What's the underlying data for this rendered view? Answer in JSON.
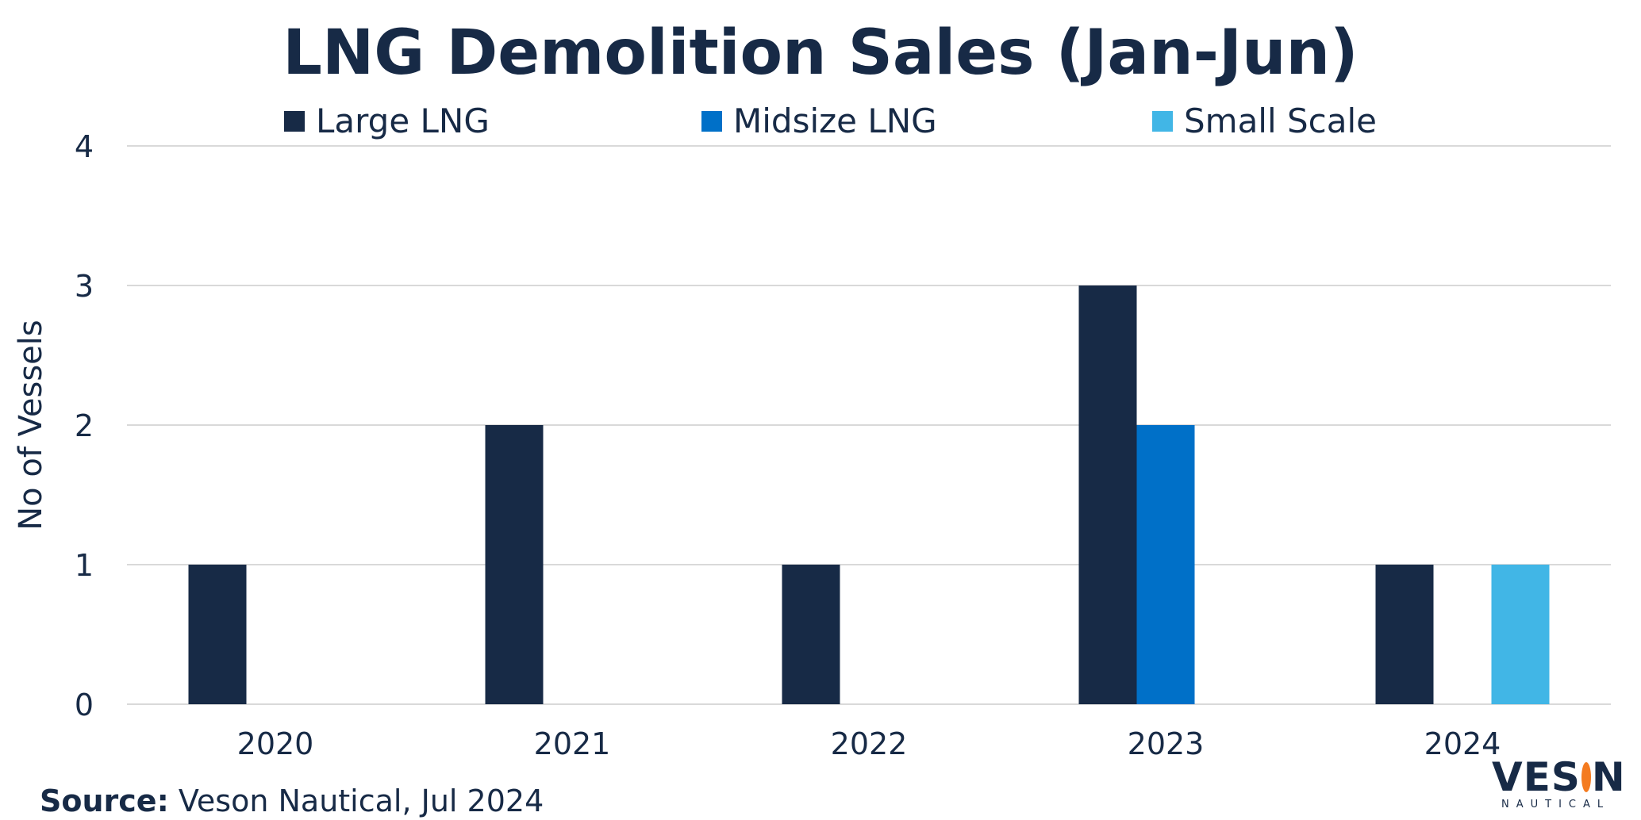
{
  "chart_data": {
    "type": "bar",
    "title": "LNG Demolition Sales (Jan-Jun)",
    "xlabel": "",
    "ylabel": "No of Vessels",
    "ylim": [
      0,
      4
    ],
    "yticks": [
      "0",
      "1",
      "2",
      "3",
      "4"
    ],
    "grid": true,
    "legend_position": "top",
    "categories": [
      "2020",
      "2021",
      "2022",
      "2023",
      "2024"
    ],
    "series": [
      {
        "name": "Large LNG",
        "color": "#172A46",
        "values": [
          1,
          2,
          1,
          3,
          1
        ]
      },
      {
        "name": "Midsize LNG",
        "color": "#0070C8",
        "values": [
          0,
          0,
          0,
          2,
          0
        ]
      },
      {
        "name": "Small Scale",
        "color": "#41B6E6",
        "values": [
          0,
          0,
          0,
          0,
          1
        ]
      }
    ]
  },
  "footer": {
    "source_label": "Source:",
    "source_text": " Veson Nautical, Jul 2024"
  },
  "logo": {
    "name": "VESON",
    "sub": "NAUTICAL"
  }
}
